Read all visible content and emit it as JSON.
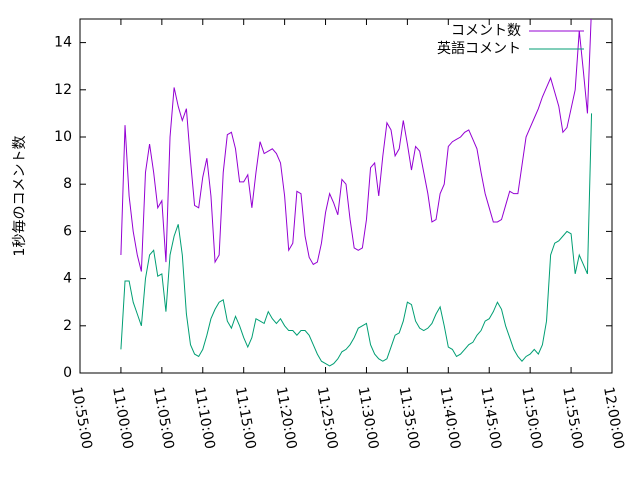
{
  "chart_data": {
    "type": "line",
    "y_label": "1秒毎のコメント数",
    "x": [
      "11:00:00",
      "11:00:30",
      "11:01:00",
      "11:01:30",
      "11:02:00",
      "11:02:30",
      "11:03:00",
      "11:03:30",
      "11:04:00",
      "11:04:30",
      "11:05:00",
      "11:05:30",
      "11:06:00",
      "11:06:30",
      "11:07:00",
      "11:07:30",
      "11:08:00",
      "11:08:30",
      "11:09:00",
      "11:09:30",
      "11:10:00",
      "11:10:30",
      "11:11:00",
      "11:11:30",
      "11:12:00",
      "11:12:30",
      "11:13:00",
      "11:13:30",
      "11:14:00",
      "11:14:30",
      "11:15:00",
      "11:15:30",
      "11:16:00",
      "11:16:30",
      "11:17:00",
      "11:17:30",
      "11:18:00",
      "11:18:30",
      "11:19:00",
      "11:19:30",
      "11:20:00",
      "11:20:30",
      "11:21:00",
      "11:21:30",
      "11:22:00",
      "11:22:30",
      "11:23:00",
      "11:23:30",
      "11:24:00",
      "11:24:30",
      "11:25:00",
      "11:25:30",
      "11:26:00",
      "11:26:30",
      "11:27:00",
      "11:27:30",
      "11:28:00",
      "11:28:30",
      "11:29:00",
      "11:29:30",
      "11:30:00",
      "11:30:30",
      "11:31:00",
      "11:31:30",
      "11:32:00",
      "11:32:30",
      "11:33:00",
      "11:33:30",
      "11:34:00",
      "11:34:30",
      "11:35:00",
      "11:35:30",
      "11:36:00",
      "11:36:30",
      "11:37:00",
      "11:37:30",
      "11:38:00",
      "11:38:30",
      "11:39:00",
      "11:39:30",
      "11:40:00",
      "11:40:30",
      "11:41:00",
      "11:41:30",
      "11:42:00",
      "11:42:30",
      "11:43:00",
      "11:43:30",
      "11:44:00",
      "11:44:30",
      "11:45:00",
      "11:45:30",
      "11:46:00",
      "11:46:30",
      "11:47:00",
      "11:47:30",
      "11:48:00",
      "11:48:30",
      "11:49:00",
      "11:49:30",
      "11:50:00",
      "11:50:30",
      "11:51:00",
      "11:51:30",
      "11:52:00",
      "11:52:30",
      "11:53:00",
      "11:53:30",
      "11:54:00",
      "11:54:30",
      "11:55:00",
      "11:55:30",
      "11:56:00",
      "11:56:30",
      "11:57:00",
      "11:57:30"
    ],
    "series": [
      {
        "name": "コメント数",
        "color": "#9400d3",
        "values": [
          5.0,
          10.5,
          7.5,
          6.0,
          5.0,
          4.3,
          8.5,
          9.7,
          8.5,
          7.0,
          7.3,
          4.7,
          10.0,
          12.1,
          11.3,
          10.7,
          11.2,
          9.0,
          7.1,
          7.0,
          8.3,
          9.1,
          7.5,
          4.7,
          5.0,
          8.5,
          10.1,
          10.2,
          9.5,
          8.1,
          8.1,
          8.4,
          7.0,
          8.5,
          9.8,
          9.3,
          9.4,
          9.5,
          9.3,
          8.9,
          7.5,
          5.2,
          5.5,
          7.7,
          7.6,
          5.8,
          4.9,
          4.6,
          4.7,
          5.5,
          6.8,
          7.6,
          7.2,
          6.7,
          8.2,
          8.0,
          6.5,
          5.3,
          5.2,
          5.3,
          6.5,
          8.7,
          8.9,
          7.5,
          9.2,
          10.6,
          10.3,
          9.2,
          9.5,
          10.7,
          9.7,
          8.6,
          9.6,
          9.4,
          8.5,
          7.6,
          6.4,
          6.5,
          7.6,
          8.0,
          9.6,
          9.8,
          9.9,
          10.0,
          10.2,
          10.3,
          9.9,
          9.5,
          8.5,
          7.6,
          7.0,
          6.4,
          6.4,
          6.5,
          7.1,
          7.7,
          7.6,
          7.6,
          8.8,
          10.0,
          10.4,
          10.8,
          11.2,
          11.7,
          12.1,
          12.5,
          11.9,
          11.3,
          10.2,
          10.4,
          11.2,
          12.0,
          14.5,
          12.8,
          11.0,
          15.5
        ]
      },
      {
        "name": "英語コメント",
        "color": "#009e73",
        "values": [
          1.0,
          3.9,
          3.9,
          3.0,
          2.5,
          2.0,
          4.0,
          5.0,
          5.2,
          4.1,
          4.2,
          2.6,
          5.0,
          5.8,
          6.3,
          5.0,
          2.5,
          1.2,
          0.8,
          0.7,
          1.0,
          1.6,
          2.3,
          2.7,
          3.0,
          3.1,
          2.2,
          1.9,
          2.4,
          2.0,
          1.5,
          1.1,
          1.5,
          2.3,
          2.2,
          2.1,
          2.6,
          2.3,
          2.1,
          2.3,
          2.0,
          1.8,
          1.8,
          1.6,
          1.8,
          1.8,
          1.6,
          1.2,
          0.8,
          0.5,
          0.4,
          0.3,
          0.4,
          0.6,
          0.9,
          1.0,
          1.2,
          1.5,
          1.9,
          2.0,
          2.1,
          1.2,
          0.8,
          0.6,
          0.5,
          0.6,
          1.1,
          1.6,
          1.7,
          2.2,
          3.0,
          2.9,
          2.2,
          1.9,
          1.8,
          1.9,
          2.1,
          2.5,
          2.8,
          2.0,
          1.1,
          1.0,
          0.7,
          0.8,
          1.0,
          1.2,
          1.3,
          1.6,
          1.8,
          2.2,
          2.3,
          2.6,
          3.0,
          2.7,
          2.0,
          1.5,
          1.0,
          0.7,
          0.5,
          0.7,
          0.8,
          1.0,
          0.8,
          1.2,
          2.2,
          5.0,
          5.5,
          5.6,
          5.8,
          6.0,
          5.9,
          4.2,
          5.0,
          4.6,
          4.2,
          11.0
        ]
      }
    ],
    "xlim": [
      "10:55:00",
      "12:00:00"
    ],
    "xticks": [
      "10:55:00",
      "11:00:00",
      "11:05:00",
      "11:10:00",
      "11:15:00",
      "11:20:00",
      "11:25:00",
      "11:30:00",
      "11:35:00",
      "11:40:00",
      "11:45:00",
      "11:50:00",
      "11:55:00",
      "12:00:00"
    ],
    "ylim": [
      0,
      15
    ],
    "yticks": [
      0,
      2,
      4,
      6,
      8,
      10,
      12,
      14
    ],
    "legend": "top right"
  }
}
